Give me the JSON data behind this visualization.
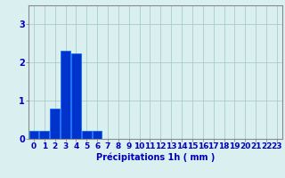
{
  "values": [
    0.2,
    0.2,
    0.8,
    2.3,
    2.25,
    0.2,
    0.2,
    0,
    0,
    0,
    0,
    0,
    0,
    0,
    0,
    0,
    0,
    0,
    0,
    0,
    0,
    0,
    0,
    0
  ],
  "bar_color": "#0033cc",
  "bar_edge_color": "#0066ff",
  "background_color": "#daf0f0",
  "grid_color": "#aacccc",
  "axis_color": "#888888",
  "text_color": "#0000bb",
  "xlabel": "Précipitations 1h ( mm )",
  "ylim": [
    0,
    3.5
  ],
  "yticks": [
    0,
    1,
    2,
    3
  ],
  "xlabel_fontsize": 7,
  "tick_fontsize": 6.5
}
